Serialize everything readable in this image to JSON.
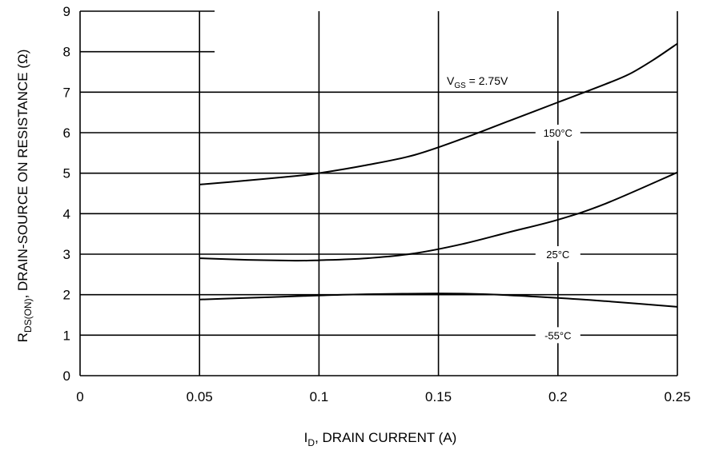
{
  "chart_data": {
    "type": "line",
    "title": "",
    "xlabel": {
      "main": "I",
      "sub": "D",
      "rest": ", DRAIN CURRENT (A)"
    },
    "ylabel": {
      "main": "R",
      "sub": "DS(ON)",
      "rest": ", DRAIN-SOURCE ON RESISTANCE (Ω)"
    },
    "xlim": [
      0,
      0.25
    ],
    "ylim": [
      0,
      9
    ],
    "xticks": [
      {
        "value": 0,
        "label": "0"
      },
      {
        "value": 0.05,
        "label": "0.05"
      },
      {
        "value": 0.1,
        "label": "0.1"
      },
      {
        "value": 0.15,
        "label": "0.15"
      },
      {
        "value": 0.2,
        "label": "0.2"
      },
      {
        "value": 0.25,
        "label": "0.25"
      }
    ],
    "yticks": [
      {
        "value": 0,
        "label": "0"
      },
      {
        "value": 1,
        "label": "1"
      },
      {
        "value": 2,
        "label": "2"
      },
      {
        "value": 3,
        "label": "3"
      },
      {
        "value": 4,
        "label": "4"
      },
      {
        "value": 5,
        "label": "5"
      },
      {
        "value": 6,
        "label": "6"
      },
      {
        "value": 7,
        "label": "7"
      },
      {
        "value": 8,
        "label": "8"
      },
      {
        "value": 9,
        "label": "9"
      }
    ],
    "grid": true,
    "condition": {
      "main": "V",
      "sub": "GS",
      "rest": " = 2.75V"
    },
    "series": [
      {
        "name": "150°C",
        "x": [
          0.05,
          0.07,
          0.09,
          0.1,
          0.12,
          0.14,
          0.16,
          0.18,
          0.2,
          0.22,
          0.23,
          0.24,
          0.25
        ],
        "y": [
          4.72,
          4.82,
          4.93,
          5.0,
          5.2,
          5.45,
          5.85,
          6.3,
          6.75,
          7.2,
          7.45,
          7.8,
          8.2
        ]
      },
      {
        "name": "25°C",
        "x": [
          0.05,
          0.07,
          0.09,
          0.1,
          0.12,
          0.14,
          0.16,
          0.18,
          0.2,
          0.22,
          0.25
        ],
        "y": [
          2.9,
          2.86,
          2.84,
          2.85,
          2.9,
          3.02,
          3.25,
          3.55,
          3.85,
          4.25,
          5.02
        ]
      },
      {
        "name": "-55°C",
        "x": [
          0.05,
          0.08,
          0.1,
          0.12,
          0.15,
          0.17,
          0.2,
          0.22,
          0.25
        ],
        "y": [
          1.88,
          1.94,
          1.98,
          2.01,
          2.03,
          2.01,
          1.92,
          1.84,
          1.7
        ]
      }
    ]
  }
}
